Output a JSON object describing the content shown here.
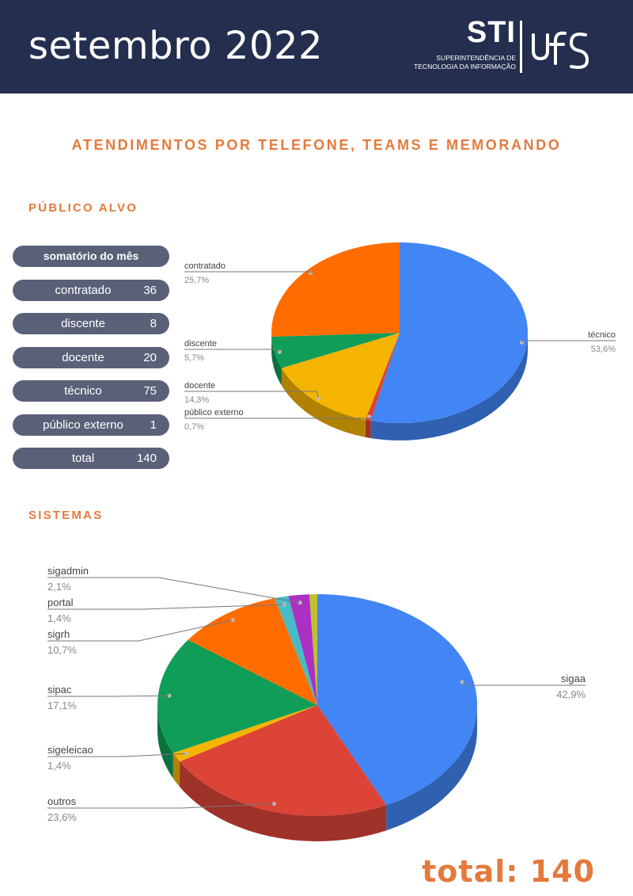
{
  "header": {
    "title": "setembro 2022",
    "logo_mark": "STI",
    "logo_line1": "SUPERINTENDÊNCIA DE",
    "logo_line2": "TECNOLOGIA DA INFORMAÇÃO",
    "ufs_logo": "ufs-logo"
  },
  "main_title": "ATENDIMENTOS POR TELEFONE, TEAMS E MEMORANDO",
  "publico": {
    "section_title": "PÚBLICO ALVO",
    "summary_header": "somatório do mês",
    "rows": [
      {
        "label": "contratado",
        "value": "36"
      },
      {
        "label": "discente",
        "value": "8"
      },
      {
        "label": "docente",
        "value": "20"
      },
      {
        "label": "técnico",
        "value": "75"
      },
      {
        "label": "público externo",
        "value": "1"
      },
      {
        "label": "total",
        "value": "140"
      }
    ]
  },
  "sistemas": {
    "section_title": "SISTEMAS"
  },
  "total_label": "total: 140",
  "colors": {
    "accent": "#e37a3c",
    "header_bg": "#242f4f",
    "pill_bg": "#5a6078"
  },
  "chart_data": [
    {
      "type": "pie",
      "title": "",
      "slices": [
        {
          "label": "técnico",
          "value": 53.6,
          "display": "53,6%",
          "color": "#4285f4"
        },
        {
          "label": "público externo",
          "value": 0.7,
          "display": "0,7%",
          "color": "#db4437"
        },
        {
          "label": "docente",
          "value": 14.3,
          "display": "14,3%",
          "color": "#f4b400"
        },
        {
          "label": "discente",
          "value": 5.7,
          "display": "5,7%",
          "color": "#0f9d58"
        },
        {
          "label": "contratado",
          "value": 25.7,
          "display": "25,7%",
          "color": "#ff6d00"
        }
      ]
    },
    {
      "type": "pie",
      "title": "",
      "slices": [
        {
          "label": "sigaa",
          "value": 42.9,
          "display": "42,9%",
          "color": "#4285f4"
        },
        {
          "label": "outros",
          "value": 23.6,
          "display": "23,6%",
          "color": "#db4437"
        },
        {
          "label": "sigeleicao",
          "value": 1.4,
          "display": "1,4%",
          "color": "#f4b400"
        },
        {
          "label": "sipac",
          "value": 17.1,
          "display": "17,1%",
          "color": "#0f9d58"
        },
        {
          "label": "sigrh",
          "value": 10.7,
          "display": "10,7%",
          "color": "#ff6d00"
        },
        {
          "label": "portal",
          "value": 1.4,
          "display": "1,4%",
          "color": "#46bdc6"
        },
        {
          "label": "sigadmin",
          "value": 2.1,
          "display": "2,1%",
          "color": "#ab30c4"
        },
        {
          "label": "",
          "value": 0.8,
          "display": "",
          "color": "#c0c030"
        }
      ]
    }
  ]
}
